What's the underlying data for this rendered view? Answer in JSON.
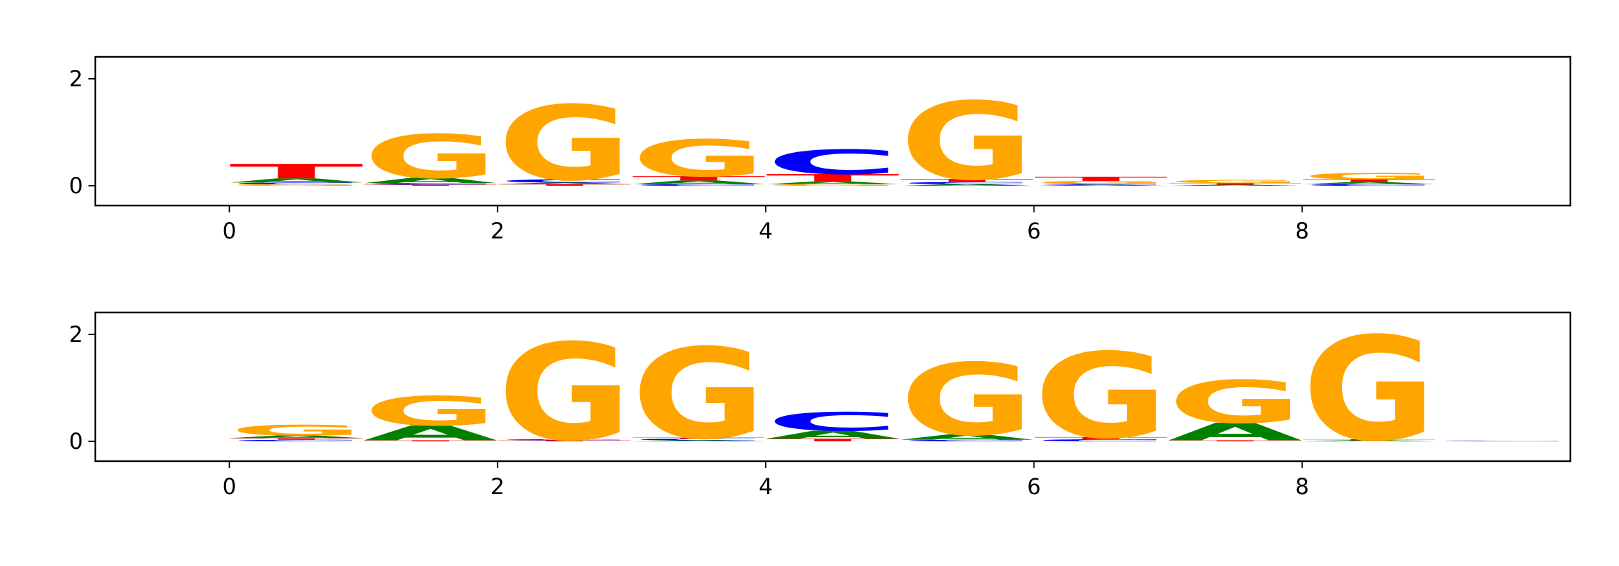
{
  "chart_data": [
    {
      "type": "logo",
      "letter_colors": {
        "A": "#008000",
        "C": "#0000ff",
        "G": "#ffa500",
        "T": "#ff0000"
      },
      "xlim": [
        -1,
        10
      ],
      "ylim": [
        -0.37,
        2.41
      ],
      "xticks": [
        0,
        2,
        4,
        6,
        8
      ],
      "yticks": [
        0,
        2
      ],
      "stacks": [
        [
          {
            "letter": "G",
            "value": 0.03
          },
          {
            "letter": "C",
            "value": 0.03
          },
          {
            "letter": "A",
            "value": 0.08
          },
          {
            "letter": "T",
            "value": 0.27
          }
        ],
        [
          {
            "letter": "T",
            "value": 0.02
          },
          {
            "letter": "C",
            "value": 0.03
          },
          {
            "letter": "A",
            "value": 0.1
          },
          {
            "letter": "G",
            "value": 0.82
          }
        ],
        [
          {
            "letter": "T",
            "value": 0.03
          },
          {
            "letter": "A",
            "value": 0.03
          },
          {
            "letter": "C",
            "value": 0.06
          },
          {
            "letter": "G",
            "value": 1.4
          }
        ],
        [
          {
            "letter": "C",
            "value": 0.03
          },
          {
            "letter": "A",
            "value": 0.07
          },
          {
            "letter": "T",
            "value": 0.08
          },
          {
            "letter": "G",
            "value": 0.69
          }
        ],
        [
          {
            "letter": "G",
            "value": 0.03
          },
          {
            "letter": "A",
            "value": 0.05
          },
          {
            "letter": "T",
            "value": 0.14
          },
          {
            "letter": "C",
            "value": 0.46
          }
        ],
        [
          {
            "letter": "A",
            "value": 0.03
          },
          {
            "letter": "C",
            "value": 0.04
          },
          {
            "letter": "T",
            "value": 0.06
          },
          {
            "letter": "G",
            "value": 1.46
          }
        ],
        [
          {
            "letter": "A",
            "value": 0.02
          },
          {
            "letter": "C",
            "value": 0.02
          },
          {
            "letter": "G",
            "value": 0.05
          },
          {
            "letter": "T",
            "value": 0.08
          }
        ],
        [
          {
            "letter": "A",
            "value": 0.02
          },
          {
            "letter": "T",
            "value": 0.03
          },
          {
            "letter": "G",
            "value": 0.06
          }
        ],
        [
          {
            "letter": "C",
            "value": 0.03
          },
          {
            "letter": "A",
            "value": 0.04
          },
          {
            "letter": "T",
            "value": 0.05
          },
          {
            "letter": "G",
            "value": 0.12
          }
        ]
      ]
    },
    {
      "type": "logo",
      "letter_colors": {
        "A": "#008000",
        "C": "#0000ff",
        "G": "#ffa500",
        "T": "#ff0000"
      },
      "xlim": [
        -1,
        10
      ],
      "ylim": [
        -0.37,
        2.41
      ],
      "xticks": [
        0,
        2,
        4,
        6,
        8
      ],
      "yticks": [
        0,
        2
      ],
      "stacks": [
        [
          {
            "letter": "C",
            "value": 0.03
          },
          {
            "letter": "T",
            "value": 0.03
          },
          {
            "letter": "A",
            "value": 0.05
          },
          {
            "letter": "G",
            "value": 0.2
          }
        ],
        [
          {
            "letter": "T",
            "value": 0.02
          },
          {
            "letter": "A",
            "value": 0.28
          },
          {
            "letter": "G",
            "value": 0.55
          }
        ],
        [
          {
            "letter": "T",
            "value": 0.02
          },
          {
            "letter": "C",
            "value": 0.02
          },
          {
            "letter": "G",
            "value": 1.82
          }
        ],
        [
          {
            "letter": "A",
            "value": 0.02
          },
          {
            "letter": "C",
            "value": 0.03
          },
          {
            "letter": "T",
            "value": 0.02
          },
          {
            "letter": "G",
            "value": 1.7
          }
        ],
        [
          {
            "letter": "T",
            "value": 0.05
          },
          {
            "letter": "A",
            "value": 0.15
          },
          {
            "letter": "C",
            "value": 0.35
          }
        ],
        [
          {
            "letter": "C",
            "value": 0.03
          },
          {
            "letter": "A",
            "value": 0.1
          },
          {
            "letter": "G",
            "value": 1.35
          }
        ],
        [
          {
            "letter": "C",
            "value": 0.04
          },
          {
            "letter": "T",
            "value": 0.04
          },
          {
            "letter": "G",
            "value": 1.6
          }
        ],
        [
          {
            "letter": "T",
            "value": 0.02
          },
          {
            "letter": "A",
            "value": 0.33
          },
          {
            "letter": "G",
            "value": 0.8
          }
        ],
        [
          {
            "letter": "A",
            "value": 0.02
          },
          {
            "letter": "T",
            "value": 0.02
          },
          {
            "letter": "G",
            "value": 1.95
          }
        ],
        [
          {
            "letter": "C",
            "value": 0.01
          }
        ]
      ]
    }
  ]
}
